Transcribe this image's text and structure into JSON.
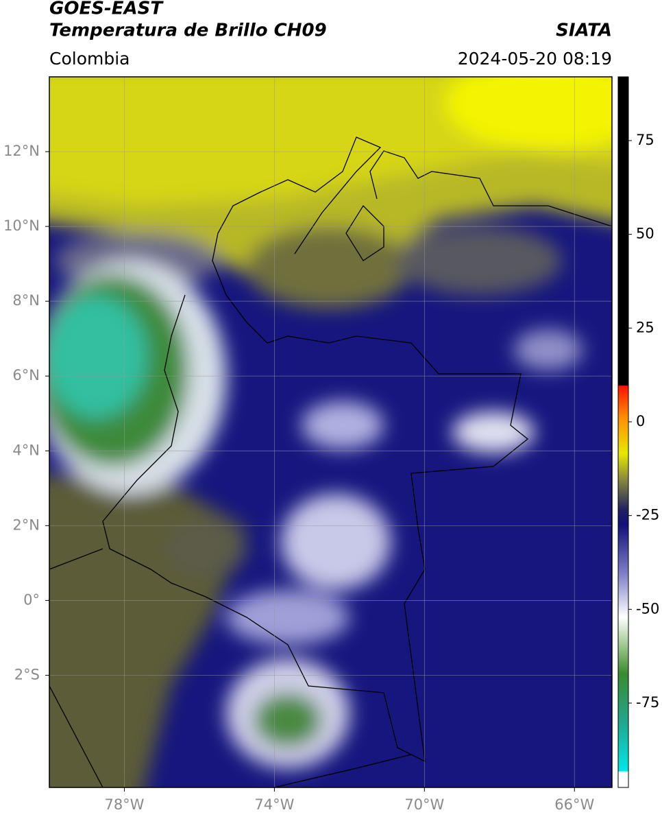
{
  "header": {
    "title": "GOES-EAST",
    "subtitle": "Temperatura de Brillo CH09",
    "source": "SIATA",
    "region": "Colombia",
    "datetime": "2024-05-20 08:19"
  },
  "map": {
    "lonlim": [
      -80,
      -65
    ],
    "latlim": [
      -5,
      14
    ],
    "lonticks": [
      {
        "value": -78,
        "label": "78°W"
      },
      {
        "value": -74,
        "label": "74°W"
      },
      {
        "value": -70,
        "label": "70°W"
      },
      {
        "value": -66,
        "label": "66°W"
      }
    ],
    "latticks": [
      {
        "value": -2,
        "label": "2°S"
      },
      {
        "value": 0,
        "label": "0°"
      },
      {
        "value": 2,
        "label": "2°N"
      },
      {
        "value": 4,
        "label": "4°N"
      },
      {
        "value": 6,
        "label": "6°N"
      },
      {
        "value": 8,
        "label": "8°N"
      },
      {
        "value": 10,
        "label": "10°N"
      },
      {
        "value": 12,
        "label": "12°N"
      }
    ],
    "grid": true
  },
  "colorbar": {
    "lim": [
      -97.5,
      92
    ],
    "ticks": [
      -75,
      -50,
      -25,
      0,
      25,
      50,
      75
    ]
  }
}
